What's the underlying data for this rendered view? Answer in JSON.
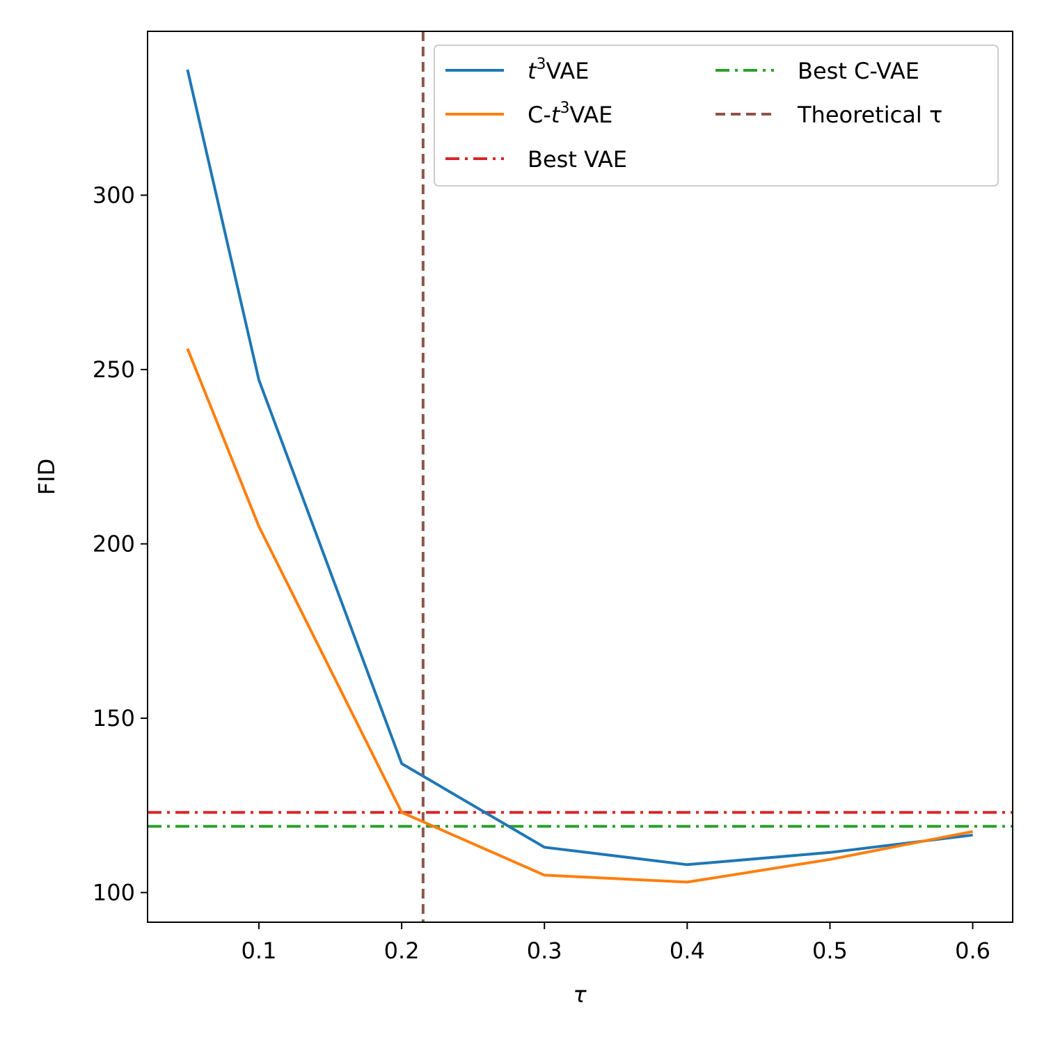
{
  "chart_data": {
    "type": "line",
    "title": "",
    "xlabel": "τ",
    "ylabel": "FID",
    "xlim": [
      0.022,
      0.628
    ],
    "ylim": [
      91.5,
      347
    ],
    "xticks": [
      0.1,
      0.2,
      0.3,
      0.4,
      0.5,
      0.6
    ],
    "xtick_labels": [
      "0.1",
      "0.2",
      "0.3",
      "0.4",
      "0.5",
      "0.6"
    ],
    "yticks": [
      100,
      150,
      200,
      250,
      300
    ],
    "ytick_labels": [
      "100",
      "150",
      "200",
      "250",
      "300"
    ],
    "grid": false,
    "legend_position": "top-right",
    "series": [
      {
        "name": "t³VAE",
        "legend_label": {
          "pre": "",
          "italic": "t",
          "sup": "3",
          "post": "VAE"
        },
        "kind": "line",
        "color": "#1f77b4",
        "x": [
          0.05,
          0.1,
          0.2,
          0.3,
          0.4,
          0.5,
          0.6
        ],
        "values": [
          336,
          247,
          137,
          113,
          108,
          111.5,
          116.5
        ]
      },
      {
        "name": "C-t³VAE",
        "legend_label": {
          "pre": "C-",
          "italic": "t",
          "sup": "3",
          "post": "VAE"
        },
        "kind": "line",
        "color": "#ff7f0e",
        "x": [
          0.05,
          0.1,
          0.2,
          0.3,
          0.4,
          0.5,
          0.6
        ],
        "values": [
          256,
          205,
          123,
          105,
          103,
          109.5,
          117.5
        ]
      }
    ],
    "reference_lines": [
      {
        "name": "Best VAE",
        "orientation": "horizontal",
        "value": 123,
        "color": "#d62728",
        "style": "dashdot"
      },
      {
        "name": "Best C-VAE",
        "orientation": "horizontal",
        "value": 119,
        "color": "#2ca02c",
        "style": "dashdot"
      },
      {
        "name": "Theoretical τ",
        "orientation": "vertical",
        "value": 0.215,
        "color": "#8c564b",
        "style": "dashed"
      }
    ]
  }
}
